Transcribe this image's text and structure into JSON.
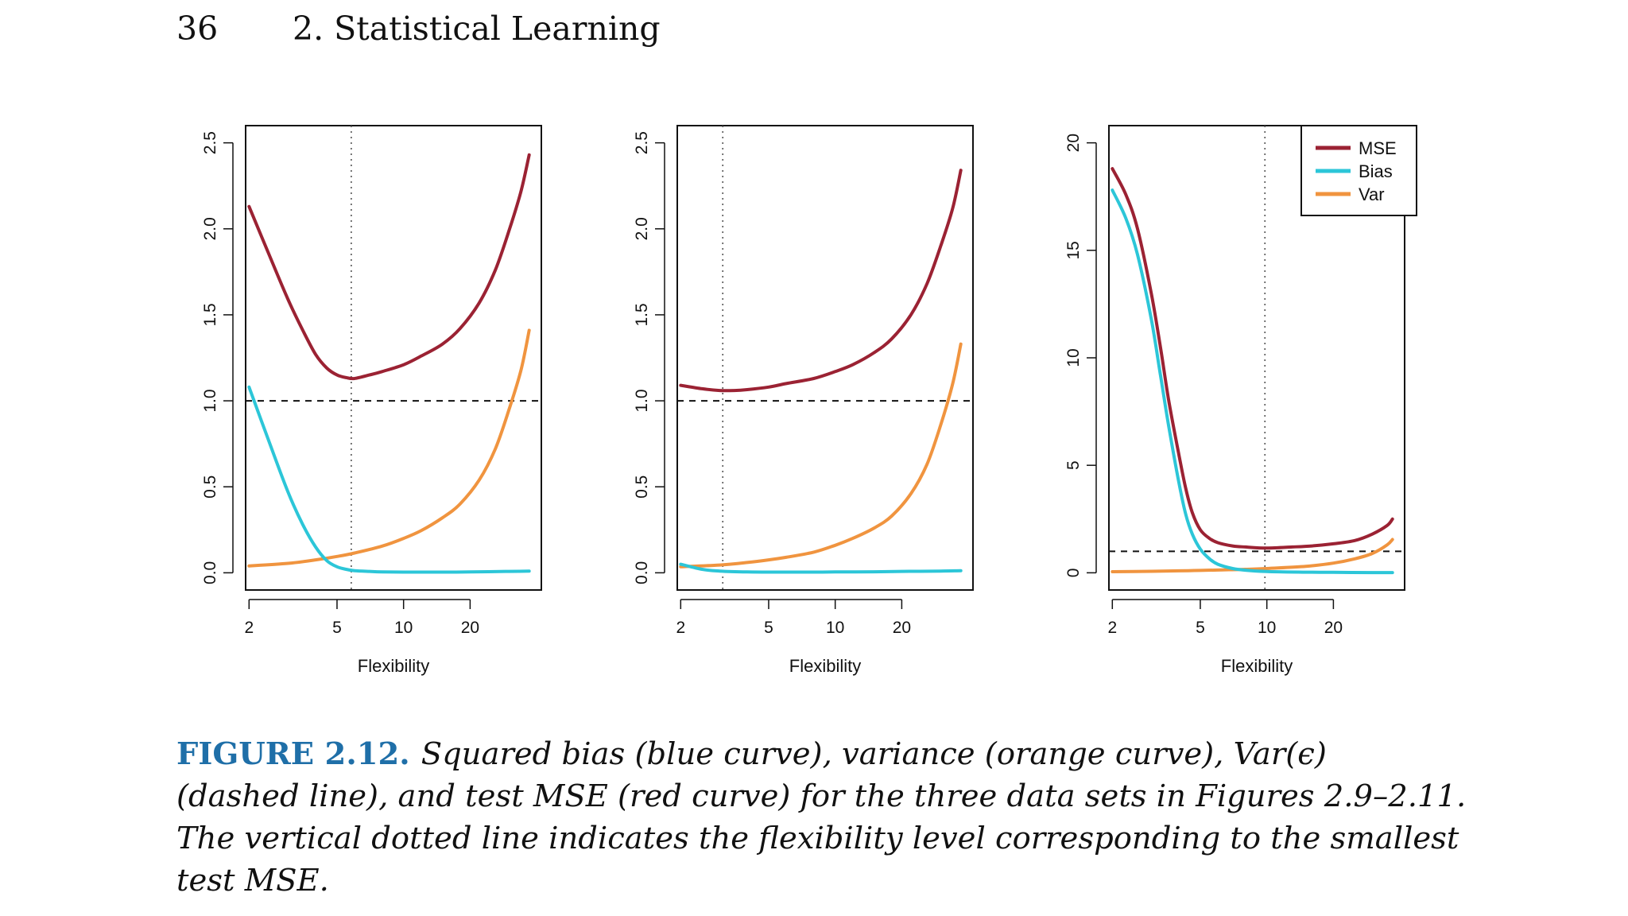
{
  "header": {
    "page_number": "36",
    "chapter": "2.  Statistical Learning"
  },
  "colors": {
    "mse": "#9b2233",
    "bias": "#2cc6d8",
    "var": "#f0943f",
    "caption_label": "#1f6fa8"
  },
  "legend": {
    "items": [
      {
        "key": "mse",
        "label": "MSE"
      },
      {
        "key": "bias",
        "label": "Bias"
      },
      {
        "key": "var",
        "label": "Var"
      }
    ]
  },
  "chart_data": [
    {
      "type": "line",
      "xlabel": "Flexibility",
      "xscale": "log",
      "xlim": [
        1.93,
        42
      ],
      "xticks": [
        2,
        5,
        10,
        20
      ],
      "ylim": [
        -0.1,
        2.6
      ],
      "yticks": [
        0.0,
        0.5,
        1.0,
        1.5,
        2.0,
        2.5
      ],
      "ytick_labels": [
        "0.0",
        "0.5",
        "1.0",
        "1.5",
        "2.0",
        "2.5"
      ],
      "irreducible_error": 1.0,
      "optimal_flexibility": 5.8,
      "series": [
        {
          "name": "MSE",
          "color_key": "mse",
          "x": [
            2,
            2.5,
            3,
            3.5,
            4,
            4.5,
            5,
            5.5,
            6,
            7,
            8,
            10,
            12,
            15,
            18,
            22,
            26,
            30,
            34,
            37
          ],
          "y": [
            2.13,
            1.83,
            1.59,
            1.41,
            1.27,
            1.19,
            1.15,
            1.135,
            1.13,
            1.15,
            1.17,
            1.21,
            1.26,
            1.33,
            1.42,
            1.57,
            1.76,
            1.99,
            2.22,
            2.43
          ]
        },
        {
          "name": "Bias",
          "color_key": "bias",
          "x": [
            2,
            2.5,
            3,
            3.5,
            4,
            4.5,
            5,
            5.5,
            6,
            7,
            8,
            10,
            15,
            20,
            30,
            37
          ],
          "y": [
            1.08,
            0.74,
            0.47,
            0.28,
            0.15,
            0.07,
            0.035,
            0.02,
            0.012,
            0.008,
            0.005,
            0.004,
            0.004,
            0.005,
            0.008,
            0.01
          ]
        },
        {
          "name": "Var",
          "color_key": "var",
          "x": [
            2,
            3,
            4,
            5,
            6,
            8,
            10,
            12,
            15,
            18,
            22,
            26,
            30,
            34,
            37
          ],
          "y": [
            0.04,
            0.055,
            0.075,
            0.095,
            0.115,
            0.155,
            0.2,
            0.245,
            0.32,
            0.4,
            0.54,
            0.72,
            0.95,
            1.18,
            1.41
          ]
        }
      ]
    },
    {
      "type": "line",
      "xlabel": "Flexibility",
      "xscale": "log",
      "xlim": [
        1.93,
        42
      ],
      "xticks": [
        2,
        5,
        10,
        20
      ],
      "ylim": [
        -0.1,
        2.6
      ],
      "yticks": [
        0.0,
        0.5,
        1.0,
        1.5,
        2.0,
        2.5
      ],
      "ytick_labels": [
        "0.0",
        "0.5",
        "1.0",
        "1.5",
        "2.0",
        "2.5"
      ],
      "irreducible_error": 1.0,
      "optimal_flexibility": 3.1,
      "series": [
        {
          "name": "MSE",
          "color_key": "mse",
          "x": [
            2,
            2.5,
            3,
            3.5,
            4,
            5,
            6,
            8,
            10,
            12,
            15,
            18,
            22,
            26,
            30,
            34,
            37
          ],
          "y": [
            1.09,
            1.07,
            1.06,
            1.06,
            1.065,
            1.08,
            1.1,
            1.13,
            1.17,
            1.21,
            1.28,
            1.36,
            1.5,
            1.68,
            1.9,
            2.12,
            2.34
          ]
        },
        {
          "name": "Bias",
          "color_key": "bias",
          "x": [
            2,
            2.5,
            3,
            4,
            5,
            6,
            8,
            10,
            15,
            20,
            30,
            37
          ],
          "y": [
            0.05,
            0.02,
            0.01,
            0.005,
            0.004,
            0.004,
            0.004,
            0.005,
            0.006,
            0.008,
            0.01,
            0.012
          ]
        },
        {
          "name": "Var",
          "color_key": "var",
          "x": [
            2,
            3,
            4,
            5,
            6,
            8,
            10,
            12,
            15,
            18,
            22,
            26,
            30,
            34,
            37
          ],
          "y": [
            0.035,
            0.045,
            0.06,
            0.075,
            0.09,
            0.12,
            0.16,
            0.2,
            0.26,
            0.33,
            0.46,
            0.63,
            0.86,
            1.1,
            1.33
          ]
        }
      ]
    },
    {
      "type": "line",
      "xlabel": "Flexibility",
      "xscale": "log",
      "xlim": [
        1.93,
        42
      ],
      "xticks": [
        2,
        5,
        10,
        20
      ],
      "ylim": [
        -0.8,
        20.8
      ],
      "yticks": [
        0,
        5,
        10,
        15,
        20
      ],
      "ytick_labels": [
        "0",
        "5",
        "10",
        "15",
        "20"
      ],
      "irreducible_error": 1.0,
      "optimal_flexibility": 9.8,
      "series": [
        {
          "name": "MSE",
          "color_key": "mse",
          "x": [
            2,
            2.3,
            2.6,
            3,
            3.3,
            3.6,
            4,
            4.3,
            4.6,
            5,
            5.5,
            6,
            7,
            8,
            10,
            13,
            16,
            20,
            25,
            30,
            35,
            37
          ],
          "y": [
            18.8,
            17.6,
            16.0,
            13.0,
            10.5,
            8.0,
            5.5,
            3.9,
            2.8,
            2.0,
            1.6,
            1.4,
            1.25,
            1.2,
            1.15,
            1.2,
            1.25,
            1.35,
            1.5,
            1.8,
            2.2,
            2.5
          ]
        },
        {
          "name": "Bias",
          "color_key": "bias",
          "x": [
            2,
            2.3,
            2.6,
            3,
            3.3,
            3.6,
            4,
            4.3,
            4.6,
            5,
            5.5,
            6,
            7,
            8,
            10,
            15,
            20,
            30,
            37
          ],
          "y": [
            17.8,
            16.5,
            14.8,
            11.8,
            9.2,
            6.8,
            4.2,
            2.7,
            1.8,
            1.1,
            0.65,
            0.4,
            0.2,
            0.12,
            0.06,
            0.03,
            0.02,
            0.01,
            0.01
          ]
        },
        {
          "name": "Var",
          "color_key": "var",
          "x": [
            2,
            3,
            4,
            5,
            6,
            8,
            10,
            15,
            20,
            25,
            30,
            35,
            37
          ],
          "y": [
            0.05,
            0.07,
            0.09,
            0.11,
            0.13,
            0.16,
            0.2,
            0.3,
            0.45,
            0.65,
            0.9,
            1.3,
            1.55
          ]
        }
      ]
    }
  ],
  "caption": {
    "label": "FIGURE 2.12.",
    "lines": [
      "Squared bias (blue curve), variance (orange curve), Var(ϵ)",
      "(dashed line), and test MSE (red curve) for the three data sets in Figures 2.9–2.11.",
      "The vertical dotted line indicates the flexibility level corresponding to the smallest",
      "test MSE."
    ]
  }
}
